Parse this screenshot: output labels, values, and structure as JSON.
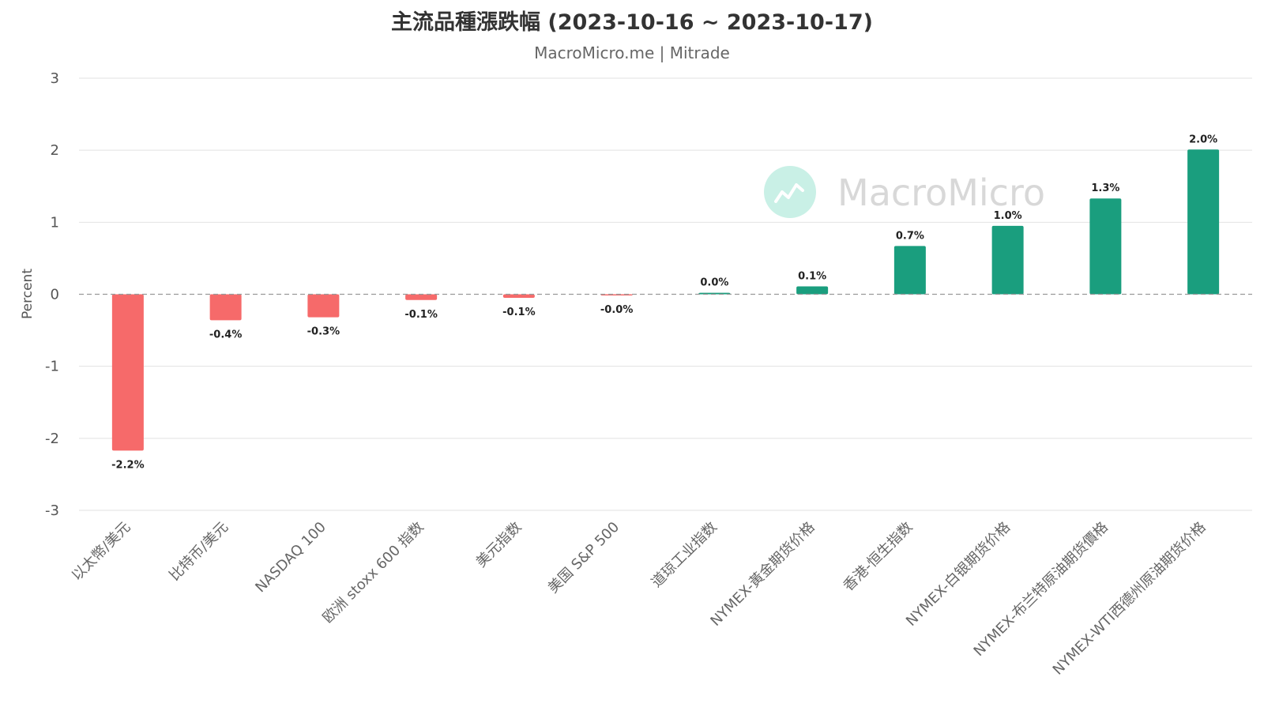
{
  "chart_data": {
    "type": "bar",
    "title": "主流品種漲跌幅 (2023-10-16 ~ 2023-10-17)",
    "subtitle": "MacroMicro.me | Mitrade",
    "ylabel": "Percent",
    "xlabel": "",
    "ylim": [
      -3,
      3
    ],
    "yticks": [
      3,
      2,
      1,
      0,
      -1,
      -2,
      -3
    ],
    "grid": true,
    "categories": [
      "以太幣/美元",
      "比特币/美元",
      "NASDAQ 100",
      "欧洲 stoxx 600 指数",
      "美元指数",
      "美国 S&P 500",
      "道琼工业指数",
      "NYMEX-黃金期货价格",
      "香港-恒生指数",
      "NYMEX-白银期货价格",
      "NYMEX-布兰特原油期货價格",
      "NYMEX-WTI西德州原油期货价格"
    ],
    "values": [
      -2.17,
      -0.36,
      -0.32,
      -0.08,
      -0.05,
      -0.01,
      0.02,
      0.11,
      0.67,
      0.95,
      1.33,
      2.01
    ],
    "data_labels": [
      "-2.2%",
      "-0.4%",
      "-0.3%",
      "-0.1%",
      "-0.1%",
      "-0.0%",
      "0.0%",
      "0.1%",
      "0.7%",
      "1.0%",
      "1.3%",
      "2.0%"
    ],
    "colors": {
      "positive": "#1a9e7e",
      "negative": "#f66a6a",
      "zero_line": "#999999",
      "grid": "#e2e2e2"
    },
    "watermark": {
      "text": "MacroMicro",
      "icon": "chart-line-icon"
    }
  }
}
